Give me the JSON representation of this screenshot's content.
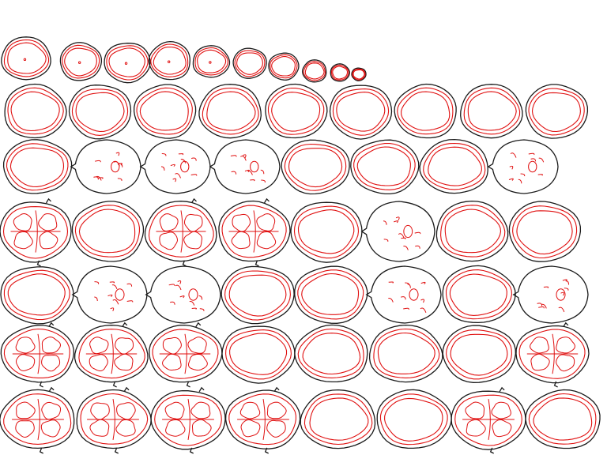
{
  "figure": {
    "background": "#ffffff",
    "outline_color": "#1a1a1a",
    "contour_color": "#e01010",
    "rows": [
      {
        "slices": [
          "plain",
          "plain",
          "plain",
          "plain",
          "plain",
          "plain",
          "plain",
          "plain",
          "plain",
          "plain"
        ],
        "dots": [
          1,
          1,
          1,
          1,
          1,
          0,
          0,
          0,
          0,
          0
        ]
      },
      {
        "slices": [
          "plain",
          "plain",
          "plain",
          "plain",
          "plain",
          "plain",
          "plain",
          "plain",
          "plain"
        ]
      },
      {
        "slices": [
          "plain",
          "skull",
          "skull",
          "skull",
          "plain",
          "plain",
          "plain",
          "skull"
        ]
      },
      {
        "slices": [
          "complex",
          "plain",
          "complex",
          "complex",
          "plain",
          "skull",
          "plain",
          "plain"
        ]
      },
      {
        "slices": [
          "plain",
          "skull",
          "skull",
          "plain",
          "plain",
          "skull",
          "plain",
          "skull"
        ]
      },
      {
        "slices": [
          "complex",
          "complex",
          "complex",
          "plain",
          "plain",
          "plain",
          "plain",
          "complex"
        ]
      },
      {
        "slices": [
          "complex",
          "complex",
          "complex",
          "complex",
          "plain",
          "plain",
          "complex",
          "plain"
        ]
      }
    ]
  }
}
